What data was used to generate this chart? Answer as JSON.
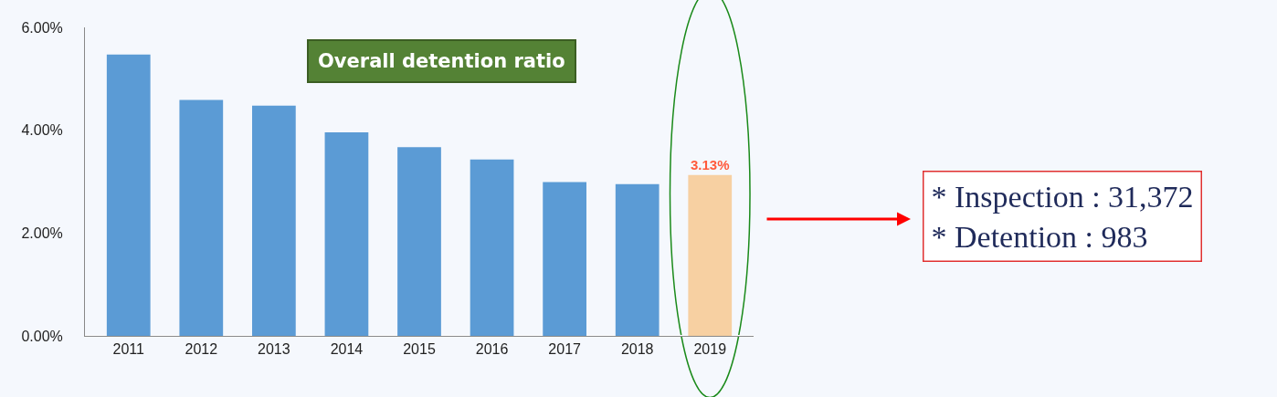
{
  "chart_data": {
    "type": "bar",
    "title": "Overall detention ratio",
    "categories": [
      "2011",
      "2012",
      "2013",
      "2014",
      "2015",
      "2016",
      "2017",
      "2018",
      "2019"
    ],
    "values": [
      5.47,
      4.59,
      4.48,
      3.96,
      3.67,
      3.43,
      2.99,
      2.95,
      3.13
    ],
    "colors": [
      "#5b9bd5",
      "#5b9bd5",
      "#5b9bd5",
      "#5b9bd5",
      "#5b9bd5",
      "#5b9bd5",
      "#5b9bd5",
      "#5b9bd5",
      "#f7d0a2"
    ],
    "value_labels": [
      null,
      null,
      null,
      null,
      null,
      null,
      null,
      null,
      "3.13%"
    ],
    "ylim": [
      0,
      6
    ],
    "yticks": [
      {
        "value": 0,
        "label": "0.00%"
      },
      {
        "value": 2,
        "label": "2.00%"
      },
      {
        "value": 4,
        "label": "4.00%"
      },
      {
        "value": 6,
        "label": "6.00%"
      }
    ],
    "annotations": [
      "* Inspection : 31,372\n* Detention : 983"
    ]
  }
}
